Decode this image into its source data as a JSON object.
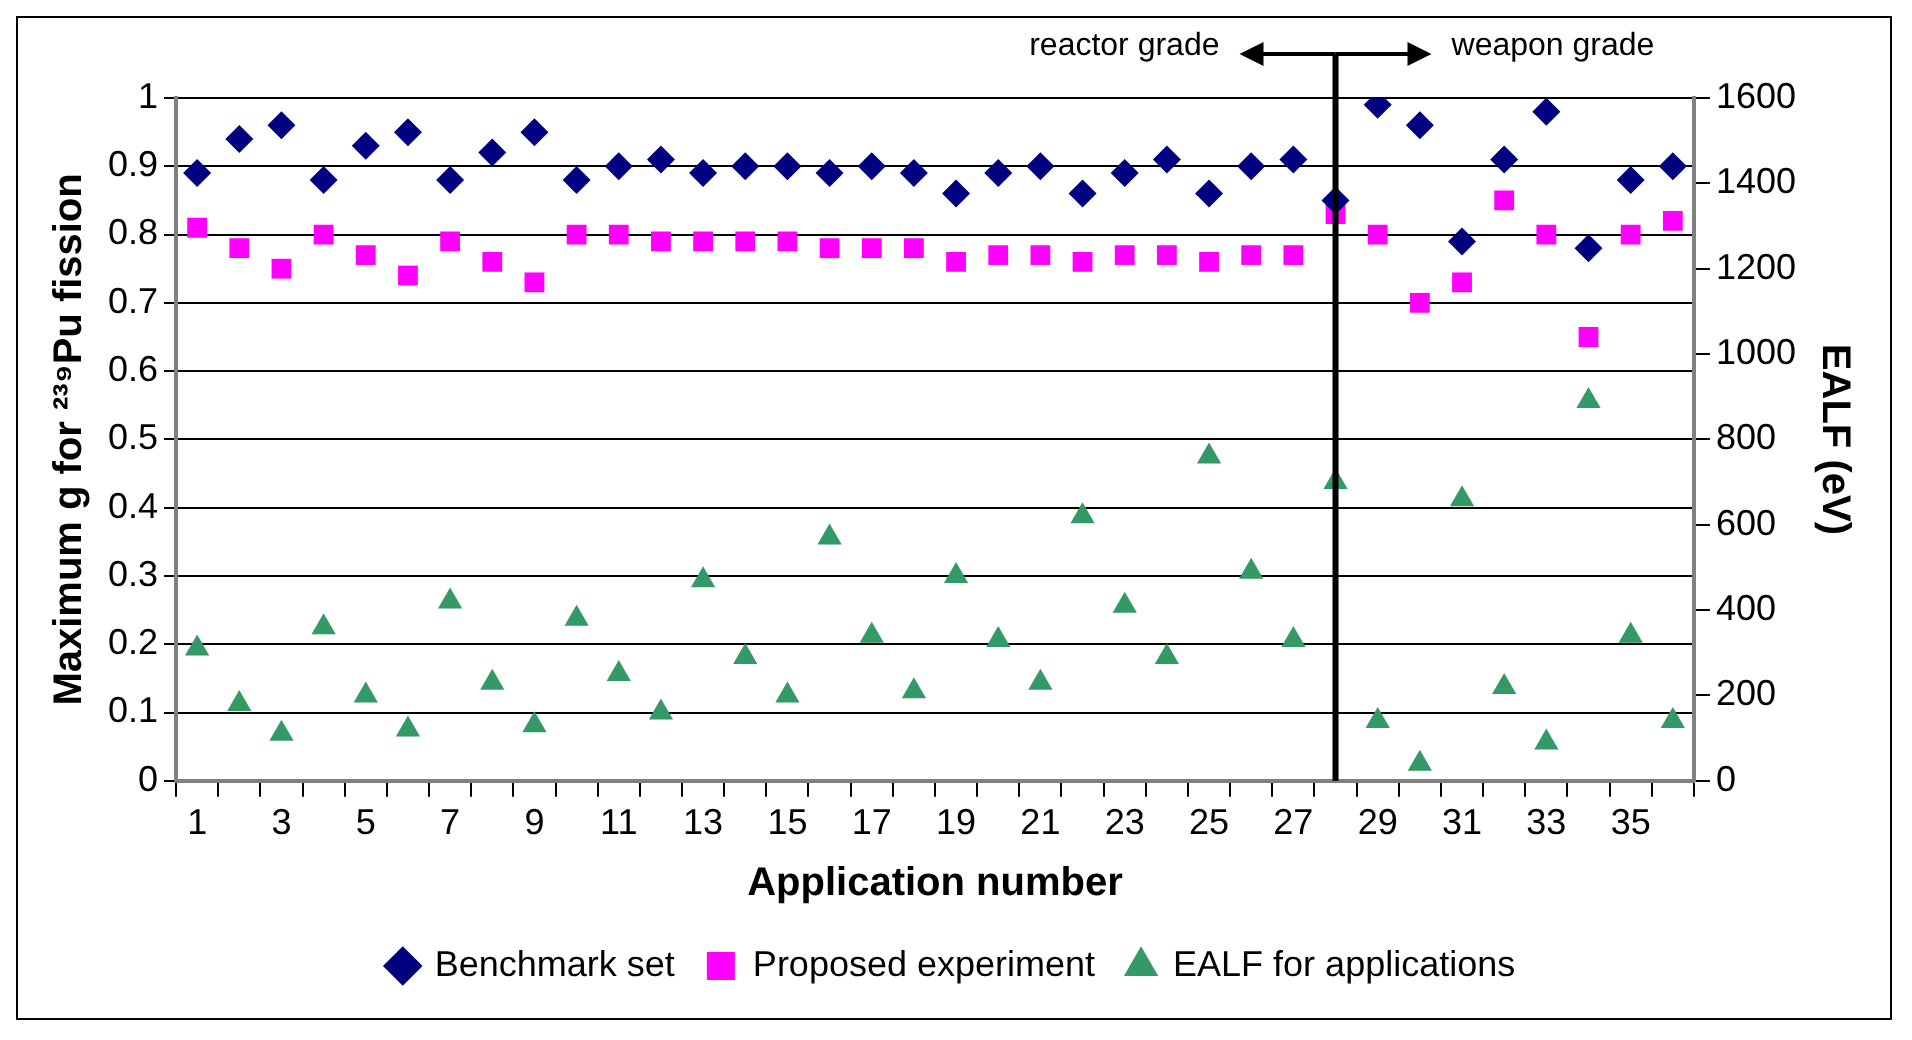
{
  "chart_data": {
    "type": "scatter",
    "xlabel": "Application number",
    "ylabel": "Maximum g for ²³⁹Pu fission",
    "y2label": "EALF (eV)",
    "x": [
      1,
      2,
      3,
      4,
      5,
      6,
      7,
      8,
      9,
      10,
      11,
      12,
      13,
      14,
      15,
      16,
      17,
      18,
      19,
      20,
      21,
      22,
      23,
      24,
      25,
      26,
      27,
      28,
      29,
      30,
      31,
      32,
      33,
      34,
      35,
      36
    ],
    "xlim": [
      0.5,
      36.5
    ],
    "xticks": [
      {
        "value": 0.5,
        "label": null
      },
      1,
      {
        "value": 1.5,
        "label": null
      },
      {
        "value": 2.5,
        "label": null
      },
      3,
      {
        "value": 3.5,
        "label": null
      },
      {
        "value": 4.5,
        "label": null
      },
      5,
      {
        "value": 5.5,
        "label": null
      },
      {
        "value": 6.5,
        "label": null
      },
      7,
      {
        "value": 7.5,
        "label": null
      },
      {
        "value": 8.5,
        "label": null
      },
      9,
      {
        "value": 9.5,
        "label": null
      },
      {
        "value": 10.5,
        "label": null
      },
      11,
      {
        "value": 11.5,
        "label": null
      },
      {
        "value": 12.5,
        "label": null
      },
      13,
      {
        "value": 13.5,
        "label": null
      },
      {
        "value": 14.5,
        "label": null
      },
      15,
      {
        "value": 15.5,
        "label": null
      },
      {
        "value": 16.5,
        "label": null
      },
      17,
      {
        "value": 17.5,
        "label": null
      },
      {
        "value": 18.5,
        "label": null
      },
      19,
      {
        "value": 19.5,
        "label": null
      },
      {
        "value": 20.5,
        "label": null
      },
      21,
      {
        "value": 21.5,
        "label": null
      },
      {
        "value": 22.5,
        "label": null
      },
      23,
      {
        "value": 23.5,
        "label": null
      },
      {
        "value": 24.5,
        "label": null
      },
      25,
      {
        "value": 25.5,
        "label": null
      },
      {
        "value": 26.5,
        "label": null
      },
      27,
      {
        "value": 27.5,
        "label": null
      },
      {
        "value": 28.5,
        "label": null
      },
      29,
      {
        "value": 29.5,
        "label": null
      },
      {
        "value": 30.5,
        "label": null
      },
      31,
      {
        "value": 31.5,
        "label": null
      },
      {
        "value": 32.5,
        "label": null
      },
      33,
      {
        "value": 33.5,
        "label": null
      },
      {
        "value": 34.5,
        "label": null
      },
      35,
      {
        "value": 35.5,
        "label": null
      },
      {
        "value": 36.5,
        "label": null
      }
    ],
    "series": [
      {
        "name": "Benchmark set",
        "color": "#000080",
        "marker": "diamond",
        "values": [
          0.89,
          0.94,
          0.96,
          0.88,
          0.93,
          0.95,
          0.88,
          0.92,
          0.95,
          0.88,
          0.9,
          0.91,
          0.89,
          0.9,
          0.9,
          0.89,
          0.9,
          0.89,
          0.86,
          0.89,
          0.9,
          0.86,
          0.89,
          0.91,
          0.86,
          0.9,
          0.91,
          0.85,
          0.99,
          0.96,
          0.79,
          0.91,
          0.98,
          0.78,
          0.88,
          0.9
        ]
      },
      {
        "name": "Proposed experiment",
        "color": "#ff00ff",
        "marker": "square",
        "values": [
          0.81,
          0.78,
          0.75,
          0.8,
          0.77,
          0.74,
          0.79,
          0.76,
          0.73,
          0.8,
          0.8,
          0.79,
          0.79,
          0.79,
          0.79,
          0.78,
          0.78,
          0.78,
          0.76,
          0.77,
          0.77,
          0.76,
          0.77,
          0.77,
          0.76,
          0.77,
          0.77,
          0.83,
          0.8,
          0.7,
          0.73,
          0.85,
          0.8,
          0.65,
          0.8,
          0.82
        ]
      },
      {
        "name": "EALF for applications",
        "color": "#339966",
        "marker": "triangle",
        "axis": "y2",
        "values": [
          310,
          180,
          110,
          360,
          200,
          120,
          420,
          230,
          130,
          380,
          250,
          160,
          470,
          290,
          200,
          570,
          340,
          210,
          480,
          330,
          230,
          620,
          410,
          290,
          760,
          490,
          330,
          700,
          140,
          40,
          660,
          220,
          90,
          890,
          340,
          140
        ]
      }
    ],
    "ylim": [
      0,
      1
    ],
    "yticks": [
      0,
      0.1,
      0.2,
      0.3,
      0.4,
      0.5,
      0.6,
      0.7,
      0.8,
      0.9,
      1
    ],
    "y2lim": [
      0,
      1600
    ],
    "y2ticks": [
      0,
      200,
      400,
      600,
      800,
      1000,
      1200,
      1400,
      1600
    ],
    "ref_lines": [
      {
        "axis": "x",
        "value": 28,
        "color": "#000000"
      }
    ],
    "annotations": [
      "reactor grade",
      "weapon grade"
    ],
    "grid": "y",
    "legend": "bottom"
  }
}
